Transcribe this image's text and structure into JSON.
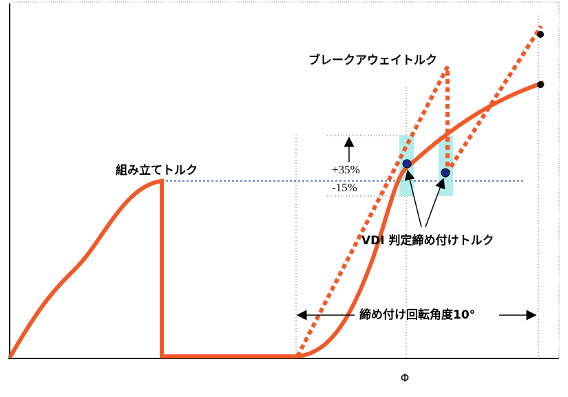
{
  "labels": {
    "breakaway": "ブレークアウェイトルク",
    "assembly": "組み立てトルク",
    "plus": "+35%",
    "minus": "-15%",
    "vdi": "VDI 判定締め付けトルク",
    "angle": "締め付け回転角度10°",
    "phi": "Φ"
  }
}
